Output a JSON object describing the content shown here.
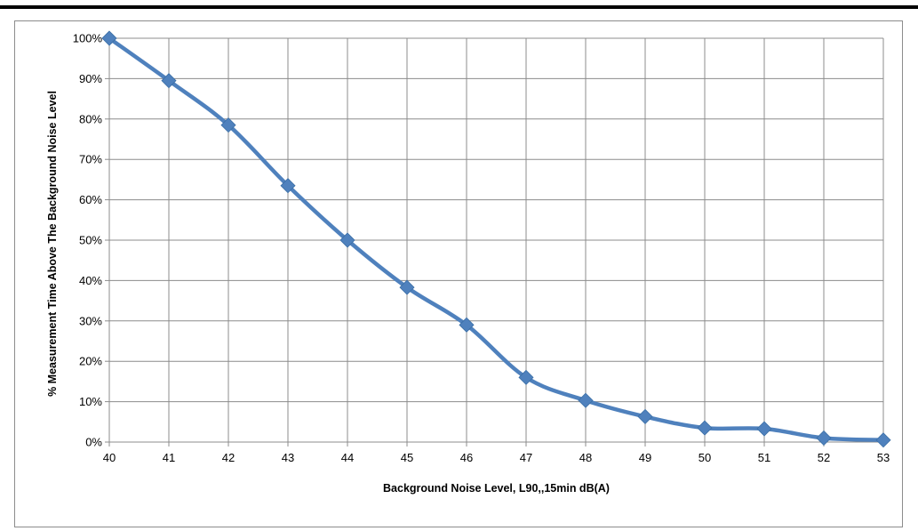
{
  "chart_data": {
    "type": "line",
    "xlabel": "Background Noise Level, L90,,15min dB(A)",
    "ylabel": "% Measurement Time Above The Background Noise Level",
    "x": [
      40,
      41,
      42,
      43,
      44,
      45,
      46,
      47,
      48,
      49,
      50,
      51,
      52,
      53
    ],
    "series": [
      {
        "values": [
          100,
          89.5,
          78.5,
          63.5,
          50,
          38.3,
          29,
          16,
          10.3,
          6.3,
          3.5,
          3.3,
          1,
          0.5
        ],
        "color": "#4f81bd",
        "marker": "diamond"
      }
    ],
    "xlim": [
      40,
      53
    ],
    "ylim": [
      0,
      100
    ],
    "ytick_step": 10,
    "yticks_format": "percent",
    "grid": true,
    "legend": "none"
  }
}
